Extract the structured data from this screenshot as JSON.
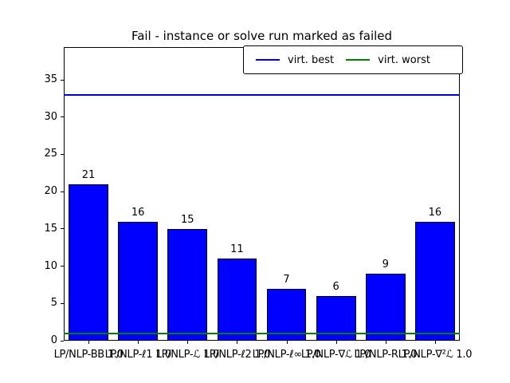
{
  "chart_data": {
    "type": "bar",
    "title": "Fail - instance or solve run marked as failed",
    "categories": [
      "LP/NLP-BB 1.0",
      "LP/NLP-ℓ1 1.0",
      "LP/NLP-ℒ 1.0",
      "LP/NLP-ℓ2 1.0",
      "LP/NLP-ℓ∞ 1.0",
      "LP/NLP-∇ℒ 1.0",
      "LP/NLP-R 1.0",
      "LP/NLP-∇²ℒ 1.0"
    ],
    "values": [
      21,
      16,
      15,
      11,
      7,
      6,
      9,
      16
    ],
    "bar_value_labels": [
      "21",
      "16",
      "15",
      "11",
      "7",
      "6",
      "9",
      "16"
    ],
    "xlabel": "",
    "ylabel": "",
    "yticks": [
      0,
      5,
      10,
      15,
      20,
      25,
      30,
      35
    ],
    "ylim": [
      0,
      39.4
    ],
    "grid": false,
    "bar_color": "#0000ff",
    "bar_edge_color": "#000000",
    "hlines": [
      {
        "name": "virt-best",
        "label": "virt. best",
        "value": 33,
        "color": "#0000cc"
      },
      {
        "name": "virt-worst",
        "label": "virt. worst",
        "value": 1,
        "color": "#007f00"
      }
    ],
    "legend": {
      "position": "upper right",
      "entries": [
        {
          "label": "virt. best",
          "color": "#0000cc"
        },
        {
          "label": "virt. worst",
          "color": "#007f00"
        }
      ]
    }
  }
}
